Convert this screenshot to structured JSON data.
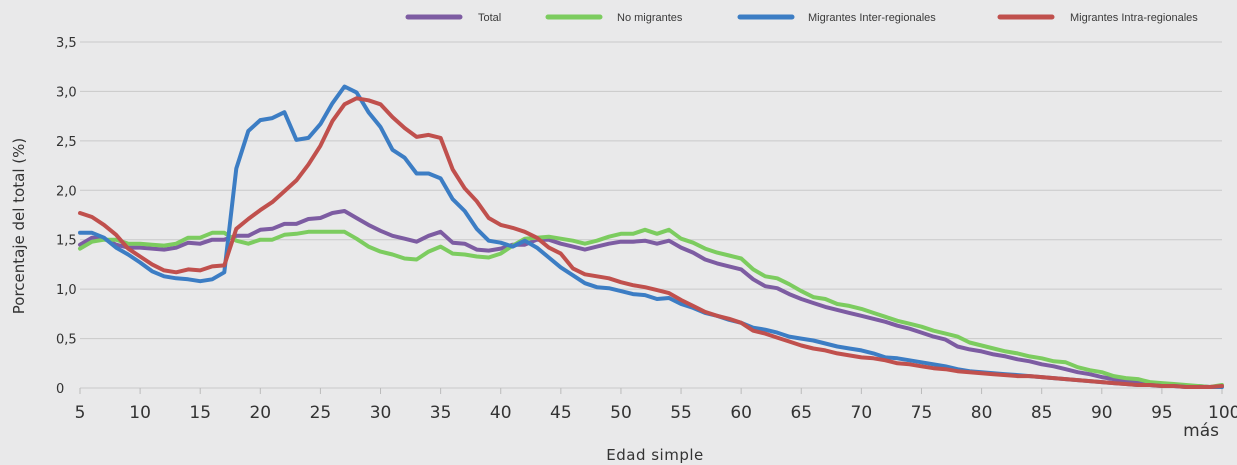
{
  "chart_data": {
    "type": "line",
    "xlabel": "Edad simple",
    "ylabel": "Porcentaje del total (%)",
    "ylim": [
      0,
      3.5
    ],
    "xlim": [
      5,
      100
    ],
    "y_ticks": [
      "0",
      "0,5",
      "1,0",
      "1,5",
      "2,0",
      "2,5",
      "3,0",
      "3,5"
    ],
    "x_ticks": [
      "5",
      "10",
      "15",
      "20",
      "25",
      "30",
      "35",
      "40",
      "45",
      "50",
      "55",
      "60",
      "65",
      "70",
      "75",
      "80",
      "85",
      "90",
      "95",
      "100 y"
    ],
    "x_last_tick_suffix": "más",
    "grid": true,
    "legend_position": "top",
    "series": [
      {
        "name": "Total",
        "color": "#7d5ca2",
        "x": [
          5,
          6,
          7,
          8,
          9,
          10,
          11,
          12,
          13,
          14,
          15,
          16,
          17,
          18,
          19,
          20,
          21,
          22,
          23,
          24,
          25,
          26,
          27,
          28,
          29,
          30,
          31,
          32,
          33,
          34,
          35,
          36,
          37,
          38,
          39,
          40,
          41,
          42,
          43,
          44,
          45,
          46,
          47,
          48,
          49,
          50,
          51,
          52,
          53,
          54,
          55,
          56,
          57,
          58,
          59,
          60,
          61,
          62,
          63,
          64,
          65,
          66,
          67,
          68,
          69,
          70,
          71,
          72,
          73,
          74,
          75,
          76,
          77,
          78,
          79,
          80,
          81,
          82,
          83,
          84,
          85,
          86,
          87,
          88,
          89,
          90,
          91,
          92,
          93,
          94,
          95,
          96,
          97,
          98,
          99,
          100
        ],
        "y": [
          1.45,
          1.52,
          1.51,
          1.45,
          1.42,
          1.42,
          1.41,
          1.4,
          1.42,
          1.47,
          1.46,
          1.5,
          1.5,
          1.54,
          1.54,
          1.6,
          1.61,
          1.66,
          1.66,
          1.71,
          1.72,
          1.77,
          1.79,
          1.72,
          1.65,
          1.59,
          1.54,
          1.51,
          1.48,
          1.54,
          1.58,
          1.47,
          1.46,
          1.4,
          1.39,
          1.41,
          1.45,
          1.45,
          1.5,
          1.5,
          1.46,
          1.43,
          1.4,
          1.43,
          1.46,
          1.48,
          1.48,
          1.49,
          1.46,
          1.49,
          1.42,
          1.37,
          1.3,
          1.26,
          1.23,
          1.2,
          1.1,
          1.03,
          1.01,
          0.95,
          0.9,
          0.86,
          0.82,
          0.79,
          0.76,
          0.73,
          0.7,
          0.67,
          0.63,
          0.6,
          0.56,
          0.52,
          0.49,
          0.42,
          0.39,
          0.37,
          0.34,
          0.32,
          0.29,
          0.27,
          0.24,
          0.22,
          0.19,
          0.16,
          0.14,
          0.11,
          0.09,
          0.07,
          0.06,
          0.05,
          0.04,
          0.03,
          0.02,
          0.02,
          0.01,
          0.02
        ]
      },
      {
        "name": "No migrantes",
        "color": "#7ccc5f",
        "x": [
          5,
          6,
          7,
          8,
          9,
          10,
          11,
          12,
          13,
          14,
          15,
          16,
          17,
          18,
          19,
          20,
          21,
          22,
          23,
          24,
          25,
          26,
          27,
          28,
          29,
          30,
          31,
          32,
          33,
          34,
          35,
          36,
          37,
          38,
          39,
          40,
          41,
          42,
          43,
          44,
          45,
          46,
          47,
          48,
          49,
          50,
          51,
          52,
          53,
          54,
          55,
          56,
          57,
          58,
          59,
          60,
          61,
          62,
          63,
          64,
          65,
          66,
          67,
          68,
          69,
          70,
          71,
          72,
          73,
          74,
          75,
          76,
          77,
          78,
          79,
          80,
          81,
          82,
          83,
          84,
          85,
          86,
          87,
          88,
          89,
          90,
          91,
          92,
          93,
          94,
          95,
          96,
          97,
          98,
          99,
          100
        ],
        "y": [
          1.41,
          1.48,
          1.5,
          1.5,
          1.46,
          1.46,
          1.45,
          1.44,
          1.46,
          1.52,
          1.52,
          1.57,
          1.57,
          1.49,
          1.46,
          1.5,
          1.5,
          1.55,
          1.56,
          1.58,
          1.58,
          1.58,
          1.58,
          1.51,
          1.43,
          1.38,
          1.35,
          1.31,
          1.3,
          1.38,
          1.43,
          1.36,
          1.35,
          1.33,
          1.32,
          1.36,
          1.44,
          1.51,
          1.52,
          1.53,
          1.51,
          1.49,
          1.46,
          1.49,
          1.53,
          1.56,
          1.56,
          1.6,
          1.56,
          1.6,
          1.51,
          1.47,
          1.41,
          1.37,
          1.34,
          1.31,
          1.2,
          1.13,
          1.11,
          1.05,
          0.98,
          0.92,
          0.9,
          0.85,
          0.83,
          0.8,
          0.76,
          0.72,
          0.68,
          0.65,
          0.62,
          0.58,
          0.55,
          0.52,
          0.46,
          0.43,
          0.4,
          0.37,
          0.35,
          0.32,
          0.3,
          0.27,
          0.26,
          0.21,
          0.18,
          0.16,
          0.12,
          0.1,
          0.09,
          0.06,
          0.05,
          0.04,
          0.03,
          0.02,
          0.01,
          0.03
        ]
      },
      {
        "name": "Migrantes Inter-regionales",
        "color": "#3c7dc4",
        "x": [
          5,
          6,
          7,
          8,
          9,
          10,
          11,
          12,
          13,
          14,
          15,
          16,
          17,
          18,
          19,
          20,
          21,
          22,
          23,
          24,
          25,
          26,
          27,
          28,
          29,
          30,
          31,
          32,
          33,
          34,
          35,
          36,
          37,
          38,
          39,
          40,
          41,
          42,
          43,
          44,
          45,
          46,
          47,
          48,
          49,
          50,
          51,
          52,
          53,
          54,
          55,
          56,
          57,
          58,
          59,
          60,
          61,
          62,
          63,
          64,
          65,
          66,
          67,
          68,
          69,
          70,
          71,
          72,
          73,
          74,
          75,
          76,
          77,
          78,
          79,
          80,
          81,
          82,
          83,
          84,
          85,
          86,
          87,
          88,
          89,
          90,
          91,
          92,
          93,
          94,
          95,
          96,
          97,
          98,
          99,
          100
        ],
        "y": [
          1.57,
          1.57,
          1.52,
          1.42,
          1.35,
          1.27,
          1.18,
          1.13,
          1.11,
          1.1,
          1.08,
          1.1,
          1.17,
          2.22,
          2.6,
          2.71,
          2.73,
          2.79,
          2.51,
          2.53,
          2.67,
          2.88,
          3.05,
          2.99,
          2.79,
          2.64,
          2.41,
          2.33,
          2.17,
          2.17,
          2.12,
          1.91,
          1.79,
          1.61,
          1.49,
          1.47,
          1.43,
          1.49,
          1.42,
          1.32,
          1.22,
          1.14,
          1.06,
          1.02,
          1.01,
          0.98,
          0.95,
          0.94,
          0.9,
          0.91,
          0.85,
          0.81,
          0.76,
          0.73,
          0.69,
          0.66,
          0.61,
          0.59,
          0.56,
          0.52,
          0.5,
          0.48,
          0.45,
          0.42,
          0.4,
          0.38,
          0.35,
          0.31,
          0.3,
          0.28,
          0.26,
          0.24,
          0.22,
          0.19,
          0.17,
          0.16,
          0.15,
          0.14,
          0.13,
          0.12,
          0.11,
          0.1,
          0.09,
          0.08,
          0.07,
          0.06,
          0.05,
          0.04,
          0.03,
          0.03,
          0.02,
          0.02,
          0.01,
          0.01,
          0.01,
          0.01
        ]
      },
      {
        "name": "Migrantes Intra-regionales",
        "color": "#c0504d",
        "x": [
          5,
          6,
          7,
          8,
          9,
          10,
          11,
          12,
          13,
          14,
          15,
          16,
          17,
          18,
          19,
          20,
          21,
          22,
          23,
          24,
          25,
          26,
          27,
          28,
          29,
          30,
          31,
          32,
          33,
          34,
          35,
          36,
          37,
          38,
          39,
          40,
          41,
          42,
          43,
          44,
          45,
          46,
          47,
          48,
          49,
          50,
          51,
          52,
          53,
          54,
          55,
          56,
          57,
          58,
          59,
          60,
          61,
          62,
          63,
          64,
          65,
          66,
          67,
          68,
          69,
          70,
          71,
          72,
          73,
          74,
          75,
          76,
          77,
          78,
          79,
          80,
          81,
          82,
          83,
          84,
          85,
          86,
          87,
          88,
          89,
          90,
          91,
          92,
          93,
          94,
          95,
          96,
          97,
          98,
          99,
          100
        ],
        "y": [
          1.77,
          1.73,
          1.65,
          1.55,
          1.41,
          1.33,
          1.25,
          1.19,
          1.17,
          1.2,
          1.19,
          1.23,
          1.24,
          1.61,
          1.71,
          1.8,
          1.88,
          1.99,
          2.1,
          2.26,
          2.45,
          2.7,
          2.87,
          2.93,
          2.91,
          2.87,
          2.74,
          2.63,
          2.54,
          2.56,
          2.53,
          2.21,
          2.02,
          1.89,
          1.72,
          1.65,
          1.62,
          1.58,
          1.52,
          1.42,
          1.36,
          1.21,
          1.15,
          1.13,
          1.11,
          1.07,
          1.04,
          1.02,
          0.99,
          0.96,
          0.89,
          0.83,
          0.77,
          0.73,
          0.7,
          0.66,
          0.58,
          0.55,
          0.51,
          0.47,
          0.43,
          0.4,
          0.38,
          0.35,
          0.33,
          0.31,
          0.3,
          0.28,
          0.25,
          0.24,
          0.22,
          0.2,
          0.19,
          0.17,
          0.16,
          0.15,
          0.14,
          0.13,
          0.12,
          0.12,
          0.11,
          0.1,
          0.09,
          0.08,
          0.07,
          0.06,
          0.05,
          0.04,
          0.03,
          0.03,
          0.02,
          0.02,
          0.01,
          0.01,
          0.01,
          0.02
        ]
      }
    ]
  }
}
